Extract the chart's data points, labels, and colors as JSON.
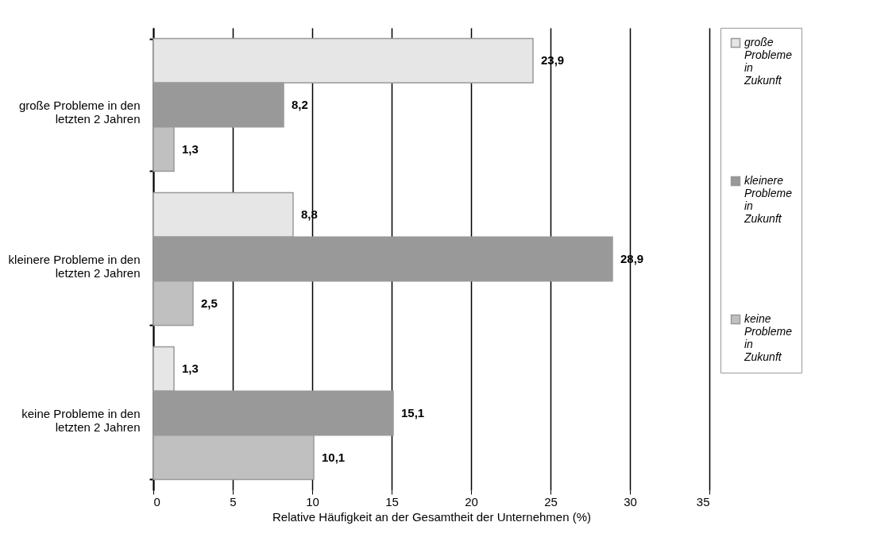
{
  "chart_data": {
    "type": "bar",
    "orientation": "horizontal",
    "xlabel": "Relative Häufigkeit an der Gesamtheit der Unternehmen (%)",
    "categories": [
      "große Probleme in den letzten 2 Jahren",
      "kleinere Probleme in den letzten 2 Jahren",
      "keine Probleme in den letzten 2 Jahren"
    ],
    "series": [
      {
        "name": "große Probleme in Zukunft",
        "color": "#e6e6e6",
        "values": [
          23.9,
          8.8,
          1.3
        ],
        "value_labels": [
          "23,9",
          "8,8",
          "1,3"
        ]
      },
      {
        "name": "kleinere Probleme in Zukunft",
        "color": "#999999",
        "values": [
          8.2,
          28.9,
          15.1
        ],
        "value_labels": [
          "8,2",
          "28,9",
          "15,1"
        ]
      },
      {
        "name": "keine Probleme in Zukunft",
        "color": "#c0c0c0",
        "values": [
          1.3,
          2.5,
          10.1
        ],
        "value_labels": [
          "1,3",
          "2,5",
          "10,1"
        ]
      }
    ],
    "xlim": [
      0,
      35
    ],
    "xticks": [
      0,
      5,
      10,
      15,
      20,
      25,
      30,
      35
    ],
    "grid": "x",
    "legend": "right"
  }
}
